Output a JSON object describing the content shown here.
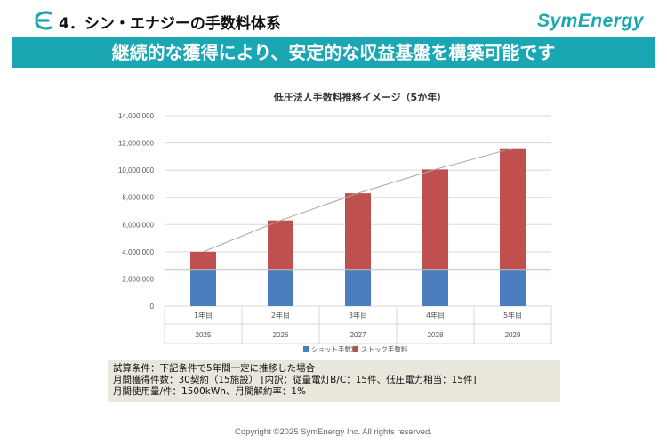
{
  "header": {
    "section_title": "4．シン・エナジーの手数料体系",
    "brand": "SymEnergy",
    "logo_icon": "symenergy-e-logo-icon",
    "accent_color": "#1aa6b3"
  },
  "banner": {
    "text": "継続的な獲得により、安定的な収益基盤を構築可能です"
  },
  "chart_data": {
    "type": "bar",
    "stacked": true,
    "title": "低圧法人手数料推移イメージ（5か年）",
    "categories": [
      "1年目",
      "2年目",
      "3年目",
      "4年目",
      "5年目"
    ],
    "subcategories": [
      "2025",
      "2026",
      "2027",
      "2028",
      "2029"
    ],
    "series": [
      {
        "name": "ショット手数料",
        "color": "#4a7ebf",
        "values": [
          2700000,
          2700000,
          2700000,
          2700000,
          2700000
        ]
      },
      {
        "name": "ストック手数料",
        "color": "#c0504d",
        "values": [
          1300000,
          3600000,
          5600000,
          7350000,
          8900000
        ]
      }
    ],
    "y_ticks": [
      "0",
      "2,000,000",
      "4,000,000",
      "6,000,000",
      "8,000,000",
      "10,000,000",
      "12,000,000",
      "14,000,000"
    ],
    "ylim": [
      0,
      14000000
    ],
    "grid": true,
    "legend_position": "bottom",
    "trend_line": true,
    "reference_line": 2700000
  },
  "assumptions": {
    "line1": "試算条件：下記条件で5年間一定に推移した場合",
    "line2": "月間獲得件数：30契約（15施設） [内訳：従量電灯B/C：15件、低圧電力相当：15件]",
    "line3": "月間使用量/件：1500kWh、月間解約率：1%"
  },
  "footer": {
    "copyright": "Copyright ©2025 SymEnergy Inc. All rights reserved."
  }
}
